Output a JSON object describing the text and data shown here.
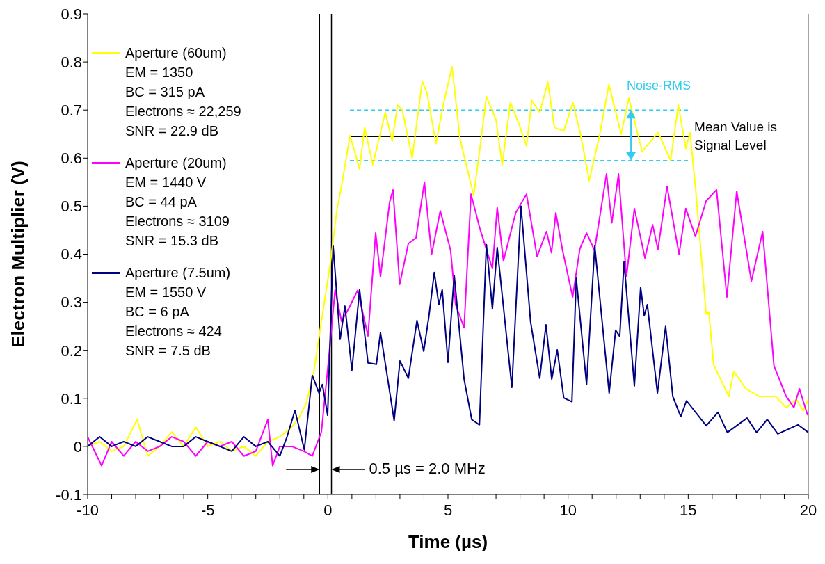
{
  "chart_data": {
    "type": "line",
    "xlabel": "Time (µs)",
    "ylabel": "Electron Multiplier (V)",
    "xlim": [
      -10,
      20
    ],
    "ylim": [
      -0.1,
      0.9
    ],
    "xticks": [
      -10,
      {
        "value": -9,
        "label": null
      },
      {
        "value": -8,
        "label": null
      },
      {
        "value": -7,
        "label": null
      },
      {
        "value": -6,
        "label": null
      },
      -5,
      {
        "value": -4,
        "label": null
      },
      {
        "value": -3,
        "label": null
      },
      {
        "value": -2,
        "label": null
      },
      {
        "value": -1,
        "label": null
      },
      0,
      {
        "value": 1,
        "label": null
      },
      {
        "value": 2,
        "label": null
      },
      {
        "value": 3,
        "label": null
      },
      {
        "value": 4,
        "label": null
      },
      5,
      {
        "value": 6,
        "label": null
      },
      {
        "value": 7,
        "label": null
      },
      {
        "value": 8,
        "label": null
      },
      {
        "value": 9,
        "label": null
      },
      10,
      {
        "value": 11,
        "label": null
      },
      {
        "value": 12,
        "label": null
      },
      {
        "value": 13,
        "label": null
      },
      {
        "value": 14,
        "label": null
      },
      15,
      {
        "value": 16,
        "label": null
      },
      {
        "value": 17,
        "label": null
      },
      {
        "value": 18,
        "label": null
      },
      {
        "value": 19,
        "label": null
      },
      20
    ],
    "yticks": [
      -0.1,
      0,
      0.1,
      0.2,
      0.3,
      0.4,
      0.5,
      0.6,
      0.7,
      0.8,
      0.9
    ],
    "legend": "top left",
    "marker": "none",
    "line_style": "solid",
    "series": [
      {
        "name": "Aperture (60um)",
        "color": "#ffff00",
        "x": [
          -10,
          -9.5,
          -9,
          -8.5,
          -7.94,
          -7.5,
          -7,
          -6.5,
          -6,
          -5.5,
          -5,
          -4.5,
          -4,
          -3.5,
          -3,
          -2.5,
          -2,
          -1.5,
          -1.2,
          -0.9,
          -0.6,
          -0.27,
          0.1,
          0.37,
          0.6,
          0.92,
          1.32,
          1.53,
          1.87,
          2.39,
          2.68,
          2.9,
          3.1,
          3.51,
          3.93,
          4.13,
          4.5,
          4.8,
          5.17,
          5.5,
          6.07,
          6.33,
          6.6,
          7.0,
          7.26,
          7.6,
          7.99,
          8.27,
          8.49,
          8.82,
          9.16,
          9.43,
          9.82,
          10.2,
          10.53,
          10.88,
          11.31,
          11.7,
          12.21,
          12.53,
          13.08,
          13.75,
          14.27,
          14.59,
          14.9,
          15.08,
          15.31,
          15.75,
          15.86,
          16.06,
          16.69,
          16.9,
          17.4,
          17.96,
          18.63,
          19.08,
          19.5,
          19.8,
          20
        ],
        "values": [
          0.0,
          0.01,
          -0.01,
          0.0,
          0.056,
          -0.02,
          0.0,
          0.03,
          0.0,
          0.04,
          0.0,
          0.01,
          -0.01,
          0.0,
          -0.02,
          0.01,
          0.02,
          0.04,
          0.06,
          0.09,
          0.15,
          0.26,
          0.38,
          0.49,
          0.55,
          0.647,
          0.577,
          0.664,
          0.586,
          0.695,
          0.635,
          0.71,
          0.7,
          0.6,
          0.76,
          0.735,
          0.63,
          0.71,
          0.79,
          0.64,
          0.522,
          0.62,
          0.728,
          0.68,
          0.586,
          0.716,
          0.666,
          0.625,
          0.72,
          0.695,
          0.758,
          0.664,
          0.656,
          0.716,
          0.647,
          0.553,
          0.647,
          0.753,
          0.65,
          0.725,
          0.614,
          0.653,
          0.595,
          0.711,
          0.62,
          0.653,
          0.535,
          0.275,
          0.28,
          0.17,
          0.104,
          0.156,
          0.12,
          0.104,
          0.104,
          0.081,
          0.098,
          0.074,
          0.098
        ]
      },
      {
        "name": "Aperture (20um)",
        "color": "#ff00ff",
        "x": [
          -10,
          -9.42,
          -9,
          -8.5,
          -8,
          -7.5,
          -7,
          -6.5,
          -6,
          -5.5,
          -5,
          -4.5,
          -4,
          -3.5,
          -3,
          -2.5,
          -2.3,
          -2,
          -1.5,
          -1,
          -0.65,
          -0.27,
          0.02,
          0.3,
          0.57,
          0.9,
          1.24,
          1.67,
          1.99,
          2.19,
          2.57,
          2.71,
          2.99,
          3.35,
          3.67,
          4.02,
          4.32,
          4.68,
          5.11,
          5.32,
          5.67,
          5.96,
          6.33,
          6.85,
          7.05,
          7.31,
          7.82,
          8.27,
          8.71,
          9.1,
          9.31,
          9.49,
          9.77,
          10.19,
          10.49,
          10.77,
          11.1,
          11.6,
          11.82,
          12.1,
          12.43,
          12.76,
          13.2,
          13.52,
          13.74,
          14.12,
          14.62,
          14.9,
          15.3,
          15.75,
          16.18,
          16.61,
          17.02,
          17.63,
          18.1,
          18.57,
          19.08,
          19.4,
          19.63,
          19.97
        ],
        "values": [
          0.02,
          -0.04,
          0.01,
          -0.02,
          0.01,
          -0.01,
          0.0,
          0.02,
          0.01,
          -0.02,
          0.01,
          0.0,
          0.01,
          -0.02,
          -0.01,
          0.056,
          -0.04,
          0.0,
          0.0,
          -0.01,
          -0.02,
          0.03,
          0.175,
          0.326,
          0.26,
          0.29,
          0.325,
          0.23,
          0.444,
          0.353,
          0.508,
          0.534,
          0.337,
          0.422,
          0.434,
          0.55,
          0.4,
          0.49,
          0.408,
          0.295,
          0.247,
          0.525,
          0.453,
          0.37,
          0.497,
          0.386,
          0.486,
          0.525,
          0.395,
          0.447,
          0.403,
          0.486,
          0.408,
          0.311,
          0.411,
          0.444,
          0.408,
          0.567,
          0.465,
          0.567,
          0.353,
          0.495,
          0.392,
          0.461,
          0.41,
          0.541,
          0.4,
          0.495,
          0.437,
          0.511,
          0.534,
          0.311,
          0.531,
          0.344,
          0.447,
          0.168,
          0.104,
          0.081,
          0.12,
          0.065
        ]
      },
      {
        "name": "Aperture (7.5um)",
        "color": "#000080",
        "x": [
          -10,
          -9.5,
          -9,
          -8.5,
          -8,
          -7.5,
          -7,
          -6.5,
          -6,
          -5.5,
          -5,
          -4.5,
          -4,
          -3.5,
          -3,
          -2.5,
          -2,
          -1.7,
          -1.37,
          -0.98,
          -0.65,
          -0.37,
          -0.23,
          -0.01,
          0.22,
          0.51,
          0.71,
          1.0,
          1.32,
          1.67,
          2.02,
          2.19,
          2.76,
          3.0,
          3.35,
          3.71,
          3.99,
          4.21,
          4.43,
          4.62,
          4.76,
          5.0,
          5.26,
          5.67,
          5.99,
          6.31,
          6.6,
          6.85,
          7.05,
          7.66,
          8.04,
          8.44,
          8.82,
          9.08,
          9.32,
          9.55,
          9.82,
          10.16,
          10.34,
          10.77,
          11.11,
          11.71,
          11.98,
          12.15,
          12.33,
          12.76,
          13.02,
          13.17,
          13.3,
          13.72,
          14.06,
          14.36,
          14.69,
          14.93,
          15.75,
          16.24,
          16.63,
          17.45,
          17.85,
          18.29,
          18.73,
          19.57,
          20
        ],
        "values": [
          0.0,
          0.02,
          0.0,
          0.01,
          0.0,
          0.02,
          0.01,
          0.0,
          0.0,
          0.02,
          0.01,
          0.0,
          -0.01,
          0.02,
          0.0,
          0.01,
          -0.02,
          0.02,
          0.075,
          -0.007,
          0.148,
          0.111,
          0.129,
          0.065,
          0.417,
          0.223,
          0.292,
          0.159,
          0.326,
          0.174,
          0.171,
          0.237,
          0.054,
          0.178,
          0.142,
          0.262,
          0.198,
          0.272,
          0.362,
          0.295,
          0.326,
          0.175,
          0.356,
          0.14,
          0.056,
          0.045,
          0.42,
          0.286,
          0.414,
          0.123,
          0.5,
          0.259,
          0.142,
          0.253,
          0.14,
          0.201,
          0.101,
          0.093,
          0.35,
          0.129,
          0.417,
          0.111,
          0.242,
          0.229,
          0.384,
          0.126,
          0.331,
          0.272,
          0.295,
          0.111,
          0.25,
          0.104,
          0.062,
          0.095,
          0.043,
          0.071,
          0.029,
          0.059,
          0.029,
          0.056,
          0.026,
          0.045,
          0.029
        ]
      }
    ],
    "ref_lines": [
      {
        "axis": "y",
        "value": 0.645,
        "label": "Mean Value is Signal Level",
        "color": "#000000",
        "line_style": "solid"
      },
      {
        "axis": "y",
        "value": 0.7,
        "color": "#33ccee",
        "line_style": "dashed"
      },
      {
        "axis": "y",
        "value": 0.595,
        "color": "#33ccee",
        "line_style": "dashed"
      },
      {
        "axis": "x",
        "value": -0.35,
        "color": "#000000",
        "line_style": "solid"
      },
      {
        "axis": "x",
        "value": 0.15,
        "color": "#000000",
        "line_style": "solid"
      }
    ],
    "annotations": [
      "EM = 1350",
      "BC = 315 pA",
      "Electrons ≈ 22,259",
      "SNR = 22.9 dB",
      "EM = 1440 V",
      "BC = 44 pA",
      "Electrons ≈ 3109",
      "SNR = 15.3 dB",
      "EM = 1550 V",
      "BC = 6 pA",
      "Electrons ≈ 424",
      "SNR = 7.5 dB",
      "Noise-RMS",
      "0.5 µs = 2.0 MHz"
    ]
  }
}
